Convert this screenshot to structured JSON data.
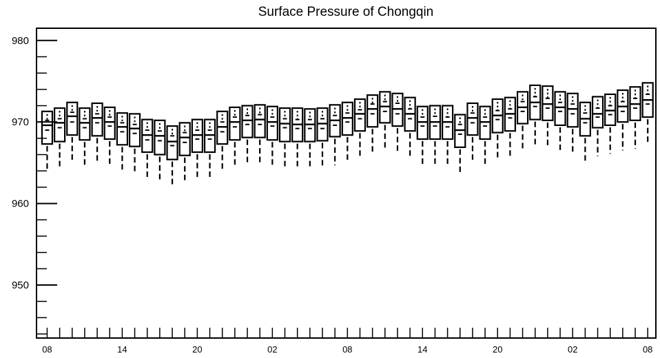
{
  "chart_data": {
    "type": "box",
    "title": "Surface Pressure of Chongqin",
    "xlabel": "",
    "ylabel": "",
    "ylim": [
      943.5,
      981.5
    ],
    "yticks": [
      950,
      960,
      970,
      980
    ],
    "y_minor_step": 2,
    "x_tick_labels": [
      "08",
      "14",
      "20",
      "02",
      "08",
      "14",
      "20",
      "02",
      "08"
    ],
    "x_tick_label_every": 6,
    "grid": false,
    "legend": "none",
    "box_color": "#000000",
    "series": [
      {
        "medians": [
          969.6,
          969.9,
          970.7,
          969.9,
          970.5,
          970.0,
          969.4,
          969.2,
          968.4,
          968.3,
          967.6,
          968.1,
          968.4,
          968.4,
          969.4,
          970.0,
          970.2,
          970.3,
          970.0,
          969.8,
          969.7,
          969.7,
          969.8,
          970.2,
          970.5,
          971.0,
          971.6,
          971.9,
          971.6,
          971.0,
          970.0,
          970.0,
          970.0,
          969.0,
          970.5,
          970.0,
          970.8,
          971.0,
          971.8,
          972.4,
          972.2,
          971.8,
          971.6,
          970.4,
          971.0,
          971.4,
          971.9,
          972.2,
          972.7
        ],
        "q1": [
          967.3,
          967.6,
          968.4,
          967.8,
          968.3,
          967.9,
          967.2,
          967.0,
          966.3,
          966.0,
          965.4,
          965.9,
          966.3,
          966.3,
          967.3,
          967.8,
          968.1,
          968.1,
          967.8,
          967.6,
          967.6,
          967.6,
          967.7,
          968.2,
          968.4,
          968.9,
          969.4,
          969.9,
          969.5,
          968.9,
          967.9,
          967.9,
          967.9,
          966.9,
          968.4,
          967.9,
          968.7,
          968.9,
          969.8,
          970.3,
          970.2,
          969.6,
          969.4,
          968.3,
          969.3,
          969.6,
          970.0,
          970.2,
          970.6
        ],
        "q3": [
          971.3,
          971.7,
          972.4,
          971.7,
          972.3,
          971.8,
          971.1,
          971.0,
          970.3,
          970.2,
          969.5,
          969.9,
          970.3,
          970.3,
          971.3,
          971.8,
          972.0,
          972.1,
          971.9,
          971.7,
          971.7,
          971.6,
          971.7,
          972.1,
          972.4,
          972.8,
          973.3,
          973.7,
          973.5,
          973.0,
          971.9,
          972.0,
          972.0,
          970.9,
          972.3,
          971.9,
          972.8,
          973.0,
          973.7,
          974.5,
          974.4,
          973.7,
          973.5,
          972.4,
          973.1,
          973.4,
          973.9,
          974.3,
          974.8
        ],
        "mean_upper": [
          970.2,
          970.4,
          971.2,
          970.4,
          971.0,
          970.6,
          969.9,
          969.7,
          969.0,
          968.9,
          968.3,
          968.7,
          969.0,
          969.0,
          970.0,
          970.6,
          970.8,
          970.9,
          970.6,
          970.4,
          970.3,
          970.3,
          970.4,
          970.8,
          971.1,
          971.5,
          972.2,
          972.5,
          972.3,
          971.6,
          970.6,
          970.7,
          970.6,
          969.7,
          971.1,
          970.6,
          971.4,
          971.6,
          972.5,
          973.1,
          972.9,
          972.4,
          972.2,
          971.1,
          971.7,
          972.0,
          972.5,
          972.9,
          973.4
        ],
        "mean_lower": [
          969.0,
          969.3,
          970.0,
          969.3,
          969.9,
          969.5,
          968.8,
          968.6,
          967.8,
          967.7,
          967.1,
          967.5,
          967.9,
          967.9,
          968.8,
          969.4,
          969.7,
          969.7,
          969.5,
          969.3,
          969.2,
          969.2,
          969.2,
          969.6,
          970.0,
          970.4,
          971.0,
          971.3,
          971.0,
          970.4,
          969.5,
          969.5,
          969.4,
          968.5,
          969.9,
          969.5,
          970.3,
          970.5,
          971.3,
          971.9,
          971.7,
          971.3,
          971.0,
          969.9,
          970.6,
          970.9,
          971.3,
          971.7,
          972.2
        ],
        "whisker_low": [
          964.0,
          964.3,
          965.0,
          964.4,
          965.0,
          964.6,
          963.8,
          963.6,
          963.0,
          962.8,
          962.2,
          962.6,
          963.0,
          963.0,
          964.1,
          964.6,
          964.8,
          964.8,
          964.6,
          964.3,
          964.3,
          964.2,
          964.3,
          964.7,
          965.0,
          965.6,
          966.1,
          966.5,
          966.3,
          965.8,
          964.7,
          964.7,
          964.6,
          963.6,
          965.0,
          964.6,
          965.4,
          965.6,
          966.4,
          967.0,
          966.9,
          966.4,
          966.1,
          965.1,
          965.8,
          966.1,
          966.5,
          966.7,
          967.3
        ]
      }
    ]
  }
}
